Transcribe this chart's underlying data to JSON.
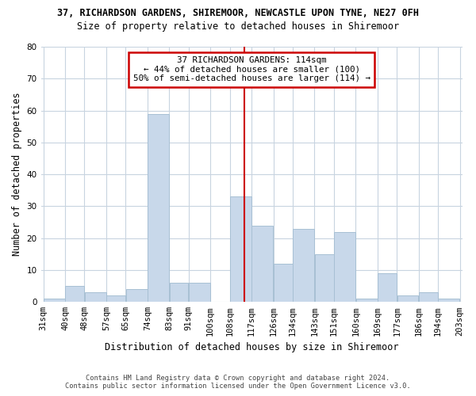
{
  "title": "37, RICHARDSON GARDENS, SHIREMOOR, NEWCASTLE UPON TYNE, NE27 0FH",
  "subtitle": "Size of property relative to detached houses in Shiremoor",
  "xlabel": "Distribution of detached houses by size in Shiremoor",
  "ylabel": "Number of detached properties",
  "bar_color": "#c8d8ea",
  "bar_edge_color": "#a8c0d4",
  "bins": [
    31,
    40,
    48,
    57,
    65,
    74,
    83,
    91,
    100,
    108,
    117,
    126,
    134,
    143,
    151,
    160,
    169,
    177,
    186,
    194,
    203
  ],
  "bin_labels": [
    "31sqm",
    "40sqm",
    "48sqm",
    "57sqm",
    "65sqm",
    "74sqm",
    "83sqm",
    "91sqm",
    "100sqm",
    "108sqm",
    "117sqm",
    "126sqm",
    "134sqm",
    "143sqm",
    "151sqm",
    "160sqm",
    "169sqm",
    "177sqm",
    "186sqm",
    "194sqm",
    "203sqm"
  ],
  "values": [
    1,
    5,
    3,
    2,
    4,
    59,
    6,
    6,
    0,
    33,
    24,
    12,
    23,
    15,
    22,
    1,
    9,
    2,
    3,
    1
  ],
  "vline_x": 114,
  "vline_color": "#cc0000",
  "annotation_title": "37 RICHARDSON GARDENS: 114sqm",
  "annotation_line1": "← 44% of detached houses are smaller (100)",
  "annotation_line2": "50% of semi-detached houses are larger (114) →",
  "annotation_box_color": "#ffffff",
  "annotation_box_edge_color": "#cc0000",
  "ylim": [
    0,
    80
  ],
  "yticks": [
    0,
    10,
    20,
    30,
    40,
    50,
    60,
    70,
    80
  ],
  "footer_line1": "Contains HM Land Registry data © Crown copyright and database right 2024.",
  "footer_line2": "Contains public sector information licensed under the Open Government Licence v3.0.",
  "background_color": "#ffffff",
  "grid_color": "#c8d4e0"
}
